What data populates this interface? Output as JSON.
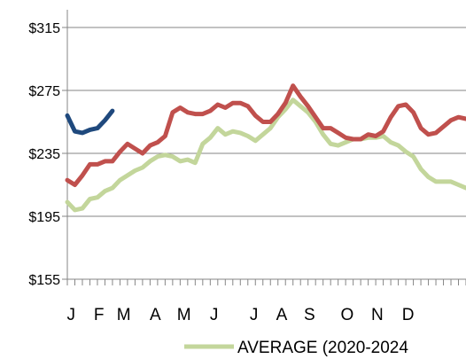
{
  "chart_data": {
    "type": "line",
    "title": "",
    "xlabel": "",
    "ylabel": "",
    "ylim": [
      155,
      315
    ],
    "yticks": [
      155,
      195,
      235,
      275,
      315
    ],
    "ytick_labels": [
      "$155",
      "$195",
      "$235",
      "$275",
      "$315"
    ],
    "x_range_weeks": [
      0,
      53
    ],
    "month_labels": [
      "J",
      "F",
      "M",
      "A",
      "M",
      "J",
      "J",
      "A",
      "S",
      "O",
      "N",
      "D"
    ],
    "month_label_weeks": [
      0.5,
      4.2,
      7.5,
      11.7,
      15.5,
      19.5,
      24.8,
      28.5,
      32.2,
      37.2,
      41.2,
      45.3
    ],
    "grid": "horizontal",
    "legend_placement": "bottom",
    "series": [
      {
        "name": "AVERAGE (2020-2024",
        "color": "#c3d69b",
        "x": [
          0,
          1,
          2,
          3,
          4,
          5,
          6,
          7,
          8,
          9,
          10,
          11,
          12,
          13,
          14,
          15,
          16,
          17,
          18,
          19,
          20,
          21,
          22,
          23,
          24,
          25,
          26,
          27,
          28,
          29,
          30,
          31,
          32,
          33,
          34,
          35,
          36,
          37,
          38,
          39,
          40,
          41,
          42,
          43,
          44,
          45,
          46,
          47,
          48,
          49,
          50,
          51,
          52,
          53
        ],
        "values": [
          204,
          199,
          200,
          206,
          207,
          211,
          213,
          218,
          221,
          224,
          226,
          230,
          233,
          234,
          233,
          230,
          231,
          229,
          241,
          245,
          251,
          247,
          249,
          248,
          246,
          243,
          247,
          251,
          258,
          263,
          269,
          265,
          261,
          255,
          247,
          241,
          240,
          242,
          244,
          244,
          245,
          245,
          246,
          242,
          240,
          236,
          233,
          225,
          220,
          217,
          217,
          217,
          215,
          213
        ]
      },
      {
        "name": "",
        "color": "#c0504d",
        "x": [
          0,
          1,
          2,
          3,
          4,
          5,
          6,
          7,
          8,
          9,
          10,
          11,
          12,
          13,
          14,
          15,
          16,
          17,
          18,
          19,
          20,
          21,
          22,
          23,
          24,
          25,
          26,
          27,
          28,
          29,
          30,
          31,
          32,
          33,
          34,
          35,
          36,
          37,
          38,
          39,
          40,
          41,
          42,
          43,
          44,
          45,
          46,
          47,
          48,
          49,
          50,
          51,
          52,
          53
        ],
        "values": [
          218,
          215,
          221,
          228,
          228,
          230,
          230,
          236,
          241,
          238,
          235,
          240,
          242,
          246,
          261,
          264,
          261,
          260,
          260,
          262,
          266,
          264,
          267,
          267,
          265,
          259,
          255,
          255,
          260,
          267,
          278,
          271,
          265,
          258,
          251,
          251,
          248,
          245,
          244,
          244,
          247,
          246,
          249,
          258,
          265,
          266,
          261,
          251,
          247,
          248,
          252,
          256,
          258,
          257
        ]
      },
      {
        "name": "",
        "color": "#1f497d",
        "x": [
          0,
          1,
          2,
          3,
          4,
          5,
          6
        ],
        "values": [
          259,
          249,
          248,
          250,
          251,
          256,
          262
        ]
      }
    ]
  }
}
